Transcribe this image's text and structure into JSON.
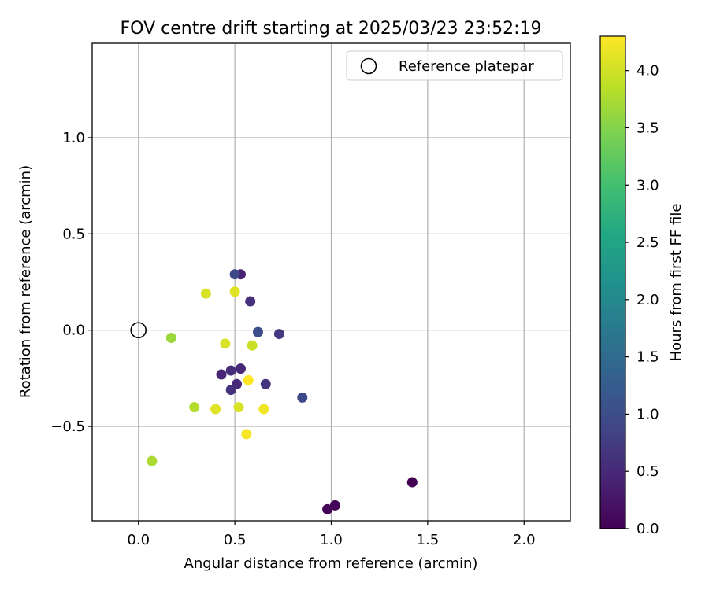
{
  "chart_data": {
    "type": "scatter",
    "title": "FOV centre drift starting at 2025/03/23 23:52:19",
    "xlabel": "Angular distance from reference (arcmin)",
    "ylabel": "Rotation from reference (arcmin)",
    "xlim": [
      -0.24,
      2.24
    ],
    "ylim": [
      -0.99,
      1.49
    ],
    "x_ticks": [
      0.0,
      0.5,
      1.0,
      1.5,
      2.0
    ],
    "x_tick_labels": [
      "0.0",
      "0.5",
      "1.0",
      "1.5",
      "2.0"
    ],
    "y_ticks": [
      -0.5,
      0.0,
      0.5,
      1.0
    ],
    "y_tick_labels": [
      "−0.5",
      "0.0",
      "0.5",
      "1.0"
    ],
    "grid": true,
    "legend": {
      "placement": "upper-right",
      "entries": [
        "Reference platepar"
      ]
    },
    "reference_point": {
      "x": 0.0,
      "y": 0.0,
      "label": "Reference platepar",
      "marker": "open-circle"
    },
    "colorbar": {
      "label": "Hours from first FF file",
      "colormap": "viridis",
      "range": [
        0.0,
        4.3
      ],
      "ticks": [
        0.0,
        0.5,
        1.0,
        1.5,
        2.0,
        2.5,
        3.0,
        3.5,
        4.0
      ],
      "tick_labels": [
        "0.0",
        "0.5",
        "1.0",
        "1.5",
        "2.0",
        "2.5",
        "3.0",
        "3.5",
        "4.0"
      ]
    },
    "points": [
      {
        "x": 1.42,
        "y": -0.79,
        "c": 0.0
      },
      {
        "x": 0.98,
        "y": -0.93,
        "c": 0.02
      },
      {
        "x": 1.02,
        "y": -0.91,
        "c": 0.05
      },
      {
        "x": 0.53,
        "y": 0.29,
        "c": 0.4
      },
      {
        "x": 0.58,
        "y": 0.15,
        "c": 0.6
      },
      {
        "x": 0.73,
        "y": -0.02,
        "c": 0.7
      },
      {
        "x": 0.53,
        "y": -0.2,
        "c": 0.5
      },
      {
        "x": 0.48,
        "y": -0.21,
        "c": 0.55
      },
      {
        "x": 0.43,
        "y": -0.23,
        "c": 0.45
      },
      {
        "x": 0.51,
        "y": -0.28,
        "c": 0.5
      },
      {
        "x": 0.48,
        "y": -0.31,
        "c": 0.6
      },
      {
        "x": 0.66,
        "y": -0.28,
        "c": 0.65
      },
      {
        "x": 0.5,
        "y": 0.29,
        "c": 0.95
      },
      {
        "x": 0.62,
        "y": -0.01,
        "c": 1.0
      },
      {
        "x": 0.85,
        "y": -0.35,
        "c": 0.95
      },
      {
        "x": 0.35,
        "y": 0.19,
        "c": 4.05
      },
      {
        "x": 0.5,
        "y": 0.2,
        "c": 4.1
      },
      {
        "x": 0.17,
        "y": -0.04,
        "c": 3.65
      },
      {
        "x": 0.45,
        "y": -0.07,
        "c": 4.05
      },
      {
        "x": 0.59,
        "y": -0.08,
        "c": 3.95
      },
      {
        "x": 0.57,
        "y": -0.26,
        "c": 4.3
      },
      {
        "x": 0.29,
        "y": -0.4,
        "c": 3.8
      },
      {
        "x": 0.4,
        "y": -0.41,
        "c": 4.1
      },
      {
        "x": 0.52,
        "y": -0.4,
        "c": 4.05
      },
      {
        "x": 0.65,
        "y": -0.41,
        "c": 4.2
      },
      {
        "x": 0.56,
        "y": -0.54,
        "c": 4.25
      },
      {
        "x": 0.07,
        "y": -0.68,
        "c": 3.75
      }
    ]
  }
}
